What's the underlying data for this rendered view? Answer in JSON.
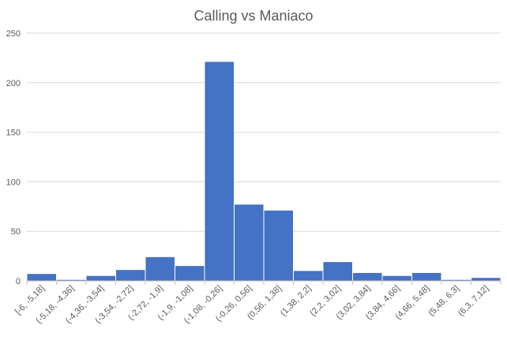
{
  "chart_data": {
    "type": "bar",
    "title": "Calling vs Maniaco",
    "xlabel": "",
    "ylabel": "",
    "categories": [
      "[-6, -5,18]",
      "(-5,18, -4,36]",
      "(-4,36, -3,54]",
      "(-3,54, -2,72]",
      "(-2,72, -1,9]",
      "(-1,9, -1,08]",
      "(-1,08, -0,26]",
      "(-0,26, 0,56]",
      "(0,56, 1,38]",
      "(1,38, 2,2]",
      "(2,2, 3,02]",
      "(3,02, 3,84]",
      "(3,84, 4,66]",
      "(4,66, 5,48]",
      "(5,48, 6,3]",
      "(6,3, 7,12]"
    ],
    "values": [
      7,
      1,
      5,
      11,
      24,
      15,
      221,
      77,
      71,
      10,
      19,
      8,
      5,
      8,
      1,
      3
    ],
    "ylim": [
      0,
      250
    ],
    "yticks": [
      0,
      50,
      100,
      150,
      200,
      250
    ],
    "grid": true,
    "legend": "none",
    "bar_color": "#4472c4",
    "bar_gap": "none"
  }
}
